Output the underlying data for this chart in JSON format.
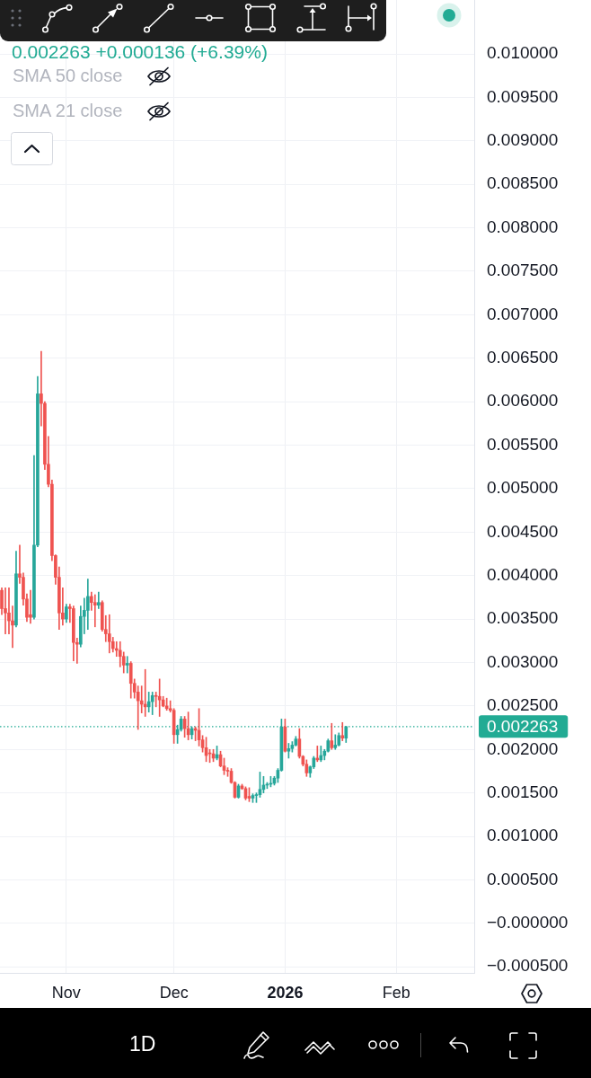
{
  "chart_data": {
    "type": "candlestick",
    "x": [
      "2025-10-14",
      "2025-10-15",
      "2025-10-16",
      "2025-10-17",
      "2025-10-18",
      "2025-10-19",
      "2025-10-20",
      "2025-10-21",
      "2025-10-22",
      "2025-10-23",
      "2025-10-24",
      "2025-10-25",
      "2025-10-26",
      "2025-10-27",
      "2025-10-28",
      "2025-10-29",
      "2025-10-30",
      "2025-10-31",
      "2025-11-01",
      "2025-11-02",
      "2025-11-03",
      "2025-11-04",
      "2025-11-05",
      "2025-11-06",
      "2025-11-07",
      "2025-11-08",
      "2025-11-09",
      "2025-11-10",
      "2025-11-11",
      "2025-11-12",
      "2025-11-13",
      "2025-11-14",
      "2025-11-15",
      "2025-11-16",
      "2025-11-17",
      "2025-11-18",
      "2025-11-19",
      "2025-11-20",
      "2025-11-21",
      "2025-11-22",
      "2025-11-23",
      "2025-11-24",
      "2025-11-25",
      "2025-11-26",
      "2025-11-27",
      "2025-11-28",
      "2025-11-29",
      "2025-11-30",
      "2025-12-01",
      "2025-12-02",
      "2025-12-03",
      "2025-12-04",
      "2025-12-05",
      "2025-12-06",
      "2025-12-07",
      "2025-12-08",
      "2025-12-09",
      "2025-12-10",
      "2025-12-11",
      "2025-12-12",
      "2025-12-13",
      "2025-12-14",
      "2025-12-15",
      "2025-12-16",
      "2025-12-17",
      "2025-12-18",
      "2025-12-19",
      "2025-12-20",
      "2025-12-21",
      "2025-12-22",
      "2025-12-23",
      "2025-12-24",
      "2025-12-25",
      "2025-12-26",
      "2025-12-27",
      "2025-12-28",
      "2025-12-29",
      "2025-12-30",
      "2025-12-31",
      "2026-01-01",
      "2026-01-02",
      "2026-01-03",
      "2026-01-04",
      "2026-01-05",
      "2026-01-06",
      "2026-01-07",
      "2026-01-08",
      "2026-01-09",
      "2026-01-10",
      "2026-01-11",
      "2026-01-12",
      "2026-01-13",
      "2026-01-14",
      "2026-01-15",
      "2026-01-16",
      "2026-01-17",
      "2026-01-18"
    ],
    "ohlc": [
      [
        0.00383,
        0.00386,
        0.00355,
        0.00362
      ],
      [
        0.00362,
        0.00386,
        0.00333,
        0.00357
      ],
      [
        0.00357,
        0.00386,
        0.00333,
        0.00348
      ],
      [
        0.00348,
        0.00365,
        0.00317,
        0.00343
      ],
      [
        0.00343,
        0.00428,
        0.00341,
        0.00402
      ],
      [
        0.00402,
        0.00435,
        0.00391,
        0.00398
      ],
      [
        0.00398,
        0.00403,
        0.00366,
        0.00373
      ],
      [
        0.00373,
        0.00379,
        0.00347,
        0.00352
      ],
      [
        0.00355,
        0.00383,
        0.00345,
        0.00352
      ],
      [
        0.00352,
        0.00538,
        0.0035,
        0.00435
      ],
      [
        0.00435,
        0.00629,
        0.00433,
        0.00609
      ],
      [
        0.00609,
        0.00658,
        0.00572,
        0.00598
      ],
      [
        0.00598,
        0.006,
        0.00522,
        0.00528
      ],
      [
        0.00528,
        0.0056,
        0.00502,
        0.00505
      ],
      [
        0.00505,
        0.0051,
        0.00417,
        0.00423
      ],
      [
        0.00423,
        0.00424,
        0.0039,
        0.00398
      ],
      [
        0.00398,
        0.0041,
        0.00338,
        0.00357
      ],
      [
        0.00357,
        0.00386,
        0.00343,
        0.0035
      ],
      [
        0.0035,
        0.00367,
        0.00346,
        0.00364
      ],
      [
        0.00364,
        0.00367,
        0.00346,
        0.00362
      ],
      [
        0.00362,
        0.00365,
        0.00302,
        0.00323
      ],
      [
        0.00323,
        0.00328,
        0.00299,
        0.00321
      ],
      [
        0.00321,
        0.00365,
        0.00318,
        0.00353
      ],
      [
        0.00353,
        0.00374,
        0.00333,
        0.0036
      ],
      [
        0.0036,
        0.00396,
        0.00338,
        0.00376
      ],
      [
        0.00376,
        0.00381,
        0.0036,
        0.00369
      ],
      [
        0.00369,
        0.00378,
        0.00341,
        0.00366
      ],
      [
        0.00366,
        0.00381,
        0.00362,
        0.00369
      ],
      [
        0.00369,
        0.00371,
        0.00336,
        0.00338
      ],
      [
        0.00338,
        0.00354,
        0.00324,
        0.00333
      ],
      [
        0.00333,
        0.00355,
        0.00311,
        0.00324
      ],
      [
        0.00324,
        0.00329,
        0.00312,
        0.00316
      ],
      [
        0.00316,
        0.00324,
        0.00307,
        0.00314
      ],
      [
        0.00314,
        0.00324,
        0.00295,
        0.00307
      ],
      [
        0.00307,
        0.00312,
        0.00288,
        0.00297
      ],
      [
        0.00297,
        0.00307,
        0.00288,
        0.00299
      ],
      [
        0.00299,
        0.00301,
        0.00259,
        0.00276
      ],
      [
        0.00276,
        0.00281,
        0.00259,
        0.00266
      ],
      [
        0.00266,
        0.00273,
        0.00223,
        0.00256
      ],
      [
        0.00256,
        0.00273,
        0.00242,
        0.00252
      ],
      [
        0.00252,
        0.00292,
        0.00238,
        0.00249
      ],
      [
        0.00249,
        0.00266,
        0.00243,
        0.00255
      ],
      [
        0.00255,
        0.00266,
        0.0024,
        0.00262
      ],
      [
        0.00262,
        0.00266,
        0.00249,
        0.00261
      ],
      [
        0.00261,
        0.00281,
        0.00238,
        0.00257
      ],
      [
        0.00257,
        0.00261,
        0.00249,
        0.0025
      ],
      [
        0.0025,
        0.00259,
        0.00245,
        0.00247
      ],
      [
        0.00247,
        0.00256,
        0.00243,
        0.00245
      ],
      [
        0.00245,
        0.00247,
        0.00207,
        0.00217
      ],
      [
        0.00217,
        0.00228,
        0.00207,
        0.00223
      ],
      [
        0.00223,
        0.00238,
        0.00221,
        0.00235
      ],
      [
        0.00235,
        0.00238,
        0.00214,
        0.00224
      ],
      [
        0.00224,
        0.00243,
        0.00211,
        0.00217
      ],
      [
        0.00217,
        0.00226,
        0.00212,
        0.00224
      ],
      [
        0.00224,
        0.00226,
        0.0021,
        0.00222
      ],
      [
        0.00222,
        0.00247,
        0.00204,
        0.00211
      ],
      [
        0.00211,
        0.00216,
        0.00197,
        0.00202
      ],
      [
        0.00202,
        0.00214,
        0.00186,
        0.00193
      ],
      [
        0.00196,
        0.002,
        0.00185,
        0.00195
      ],
      [
        0.00195,
        0.002,
        0.00186,
        0.0019
      ],
      [
        0.0019,
        0.00204,
        0.00188,
        0.00194
      ],
      [
        0.00194,
        0.00198,
        0.0018,
        0.00181
      ],
      [
        0.00181,
        0.0019,
        0.00171,
        0.00176
      ],
      [
        0.00176,
        0.00179,
        0.00169,
        0.00175
      ],
      [
        0.00175,
        0.00178,
        0.00161,
        0.00162
      ],
      [
        0.00162,
        0.00163,
        0.00144,
        0.00145
      ],
      [
        0.00145,
        0.0016,
        0.00144,
        0.00158
      ],
      [
        0.00158,
        0.0016,
        0.00154,
        0.00155
      ],
      [
        0.00155,
        0.00157,
        0.00142,
        0.00144
      ],
      [
        0.00146,
        0.00156,
        0.0014,
        0.00144
      ],
      [
        0.00144,
        0.00149,
        0.00139,
        0.00147
      ],
      [
        0.00147,
        0.0015,
        0.00139,
        0.00148
      ],
      [
        0.00148,
        0.00174,
        0.00145,
        0.00154
      ],
      [
        0.00154,
        0.00169,
        0.0015,
        0.00159
      ],
      [
        0.00159,
        0.00162,
        0.00155,
        0.0016
      ],
      [
        0.0016,
        0.00169,
        0.00157,
        0.00161
      ],
      [
        0.00161,
        0.00169,
        0.00159,
        0.00167
      ],
      [
        0.00167,
        0.00178,
        0.00162,
        0.00176
      ],
      [
        0.00176,
        0.00235,
        0.00175,
        0.00226
      ],
      [
        0.00226,
        0.00235,
        0.00197,
        0.00198
      ],
      [
        0.00198,
        0.00207,
        0.0019,
        0.00201
      ],
      [
        0.00201,
        0.00209,
        0.00197,
        0.00205
      ],
      [
        0.00205,
        0.00215,
        0.00204,
        0.00212
      ],
      [
        0.00212,
        0.00224,
        0.0019,
        0.00192
      ],
      [
        0.00192,
        0.00193,
        0.00181,
        0.00183
      ],
      [
        0.00183,
        0.00188,
        0.00169,
        0.00173
      ],
      [
        0.00173,
        0.00181,
        0.00168,
        0.0018
      ],
      [
        0.0018,
        0.00192,
        0.00178,
        0.0019
      ],
      [
        0.0019,
        0.00204,
        0.00186,
        0.00188
      ],
      [
        0.00188,
        0.00204,
        0.00186,
        0.00193
      ],
      [
        0.00193,
        0.002,
        0.00188,
        0.00198
      ],
      [
        0.00198,
        0.00212,
        0.00197,
        0.0021
      ],
      [
        0.0021,
        0.0023,
        0.002,
        0.00202
      ],
      [
        0.00202,
        0.00217,
        0.002,
        0.00205
      ],
      [
        0.00205,
        0.00219,
        0.00204,
        0.00216
      ],
      [
        0.00216,
        0.00231,
        0.0021,
        0.00213
      ],
      [
        0.00213,
        0.002263,
        0.00208,
        0.002263
      ]
    ],
    "colors": [
      "#ef5350",
      "#ef5350",
      "#ef5350",
      "#ef5350",
      "#26a69a",
      "#ef5350",
      "#ef5350",
      "#ef5350",
      "#ef5350",
      "#26a69a",
      "#26a69a",
      "#ef5350",
      "#ef5350",
      "#ef5350",
      "#ef5350",
      "#ef5350",
      "#ef5350",
      "#ef5350",
      "#26a69a",
      "#ef5350",
      "#ef5350",
      "#ef5350",
      "#26a69a",
      "#26a69a",
      "#26a69a",
      "#ef5350",
      "#ef5350",
      "#26a69a",
      "#ef5350",
      "#ef5350",
      "#ef5350",
      "#ef5350",
      "#ef5350",
      "#ef5350",
      "#ef5350",
      "#26a69a",
      "#ef5350",
      "#ef5350",
      "#ef5350",
      "#ef5350",
      "#ef5350",
      "#26a69a",
      "#26a69a",
      "#ef5350",
      "#ef5350",
      "#ef5350",
      "#ef5350",
      "#ef5350",
      "#ef5350",
      "#26a69a",
      "#26a69a",
      "#ef5350",
      "#ef5350",
      "#26a69a",
      "#ef5350",
      "#ef5350",
      "#ef5350",
      "#ef5350",
      "#ef5350",
      "#ef5350",
      "#26a69a",
      "#ef5350",
      "#ef5350",
      "#ef5350",
      "#ef5350",
      "#ef5350",
      "#26a69a",
      "#ef5350",
      "#ef5350",
      "#ef5350",
      "#26a69a",
      "#26a69a",
      "#26a69a",
      "#26a69a",
      "#26a69a",
      "#26a69a",
      "#26a69a",
      "#26a69a",
      "#26a69a",
      "#ef5350",
      "#26a69a",
      "#26a69a",
      "#26a69a",
      "#ef5350",
      "#ef5350",
      "#ef5350",
      "#26a69a",
      "#26a69a",
      "#ef5350",
      "#26a69a",
      "#26a69a",
      "#26a69a",
      "#ef5350",
      "#26a69a",
      "#26a69a",
      "#ef5350",
      "#26a69a"
    ],
    "xlim": [
      "2025-10-13T12:00",
      "2026-02-22T18:00"
    ],
    "xticks": [
      {
        "value": "2025-11-01",
        "label": "Nov"
      },
      {
        "value": "2025-12-01",
        "label": "Dec"
      },
      {
        "value": "2026-01-01",
        "label": "2026"
      },
      {
        "value": "2026-02-01",
        "label": "Feb"
      }
    ],
    "ylim": [
      -0.00057,
      0.01062
    ],
    "yticks": [
      {
        "value": -0.0005,
        "label": "−0.000500"
      },
      {
        "value": 0,
        "label": "−0.000000"
      },
      {
        "value": 0.0005,
        "label": "0.000500"
      },
      {
        "value": 0.001,
        "label": "0.001000"
      },
      {
        "value": 0.0015,
        "label": "0.001500"
      },
      {
        "value": 0.002,
        "label": "0.002000"
      },
      {
        "value": 0.0025,
        "label": "0.002500"
      },
      {
        "value": 0.003,
        "label": "0.003000"
      },
      {
        "value": 0.0035,
        "label": "0.003500"
      },
      {
        "value": 0.004,
        "label": "0.004000"
      },
      {
        "value": 0.0045,
        "label": "0.004500"
      },
      {
        "value": 0.005,
        "label": "0.005000"
      },
      {
        "value": 0.0055,
        "label": "0.005500"
      },
      {
        "value": 0.006,
        "label": "0.006000"
      },
      {
        "value": 0.0065,
        "label": "0.006500"
      },
      {
        "value": 0.007,
        "label": "0.007000"
      },
      {
        "value": 0.0075,
        "label": "0.007500"
      },
      {
        "value": 0.008,
        "label": "0.008000"
      },
      {
        "value": 0.0085,
        "label": "0.008500"
      },
      {
        "value": 0.009,
        "label": "0.009000"
      },
      {
        "value": 0.0095,
        "label": "0.009500"
      },
      {
        "value": 0.01,
        "label": "0.010000"
      }
    ],
    "grid": true,
    "ref_lines": [
      {
        "axis": "y",
        "value": 0.002263,
        "label": "0.002263",
        "color": "#22ab94",
        "line_style": "dotted"
      }
    ],
    "annotations": [
      "0.002263 +0.000136 (+6.39%)",
      "SMA 50 close",
      "SMA 21 close",
      "1D"
    ]
  }
}
